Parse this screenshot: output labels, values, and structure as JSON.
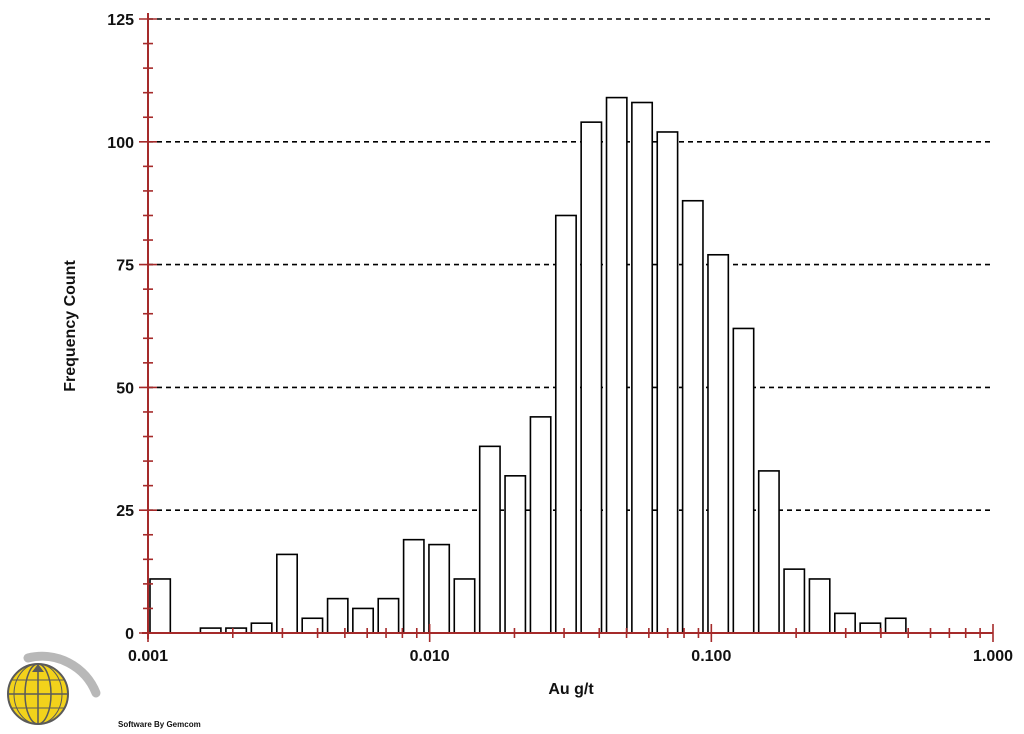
{
  "chart_data": {
    "type": "bar",
    "xscale": "log",
    "xlabel": "Au g/t",
    "ylabel": "Frequency Count",
    "xlim": [
      0.001,
      1.0
    ],
    "ylim": [
      0,
      125
    ],
    "x_ticks": [
      "0.001",
      "0.010",
      "0.100",
      "1.000"
    ],
    "y_ticks": [
      "0",
      "25",
      "50",
      "75",
      "100",
      "125"
    ],
    "grid": "horizontal dashed",
    "bin_edges": [
      0.001,
      0.00123,
      0.00151,
      0.00186,
      0.00229,
      0.00282,
      0.00347,
      0.00427,
      0.00525,
      0.00646,
      0.00795,
      0.00978,
      0.01203,
      0.01481,
      0.01822,
      0.02242,
      0.02758,
      0.03394,
      0.04176,
      0.05138,
      0.06322,
      0.07779,
      0.09571,
      0.11776,
      0.1449,
      0.17829,
      0.21937,
      0.26992,
      0.33212,
      0.40865
    ],
    "values": [
      11,
      0,
      1,
      1,
      2,
      16,
      3,
      7,
      5,
      7,
      19,
      18,
      11,
      38,
      32,
      44,
      85,
      104,
      109,
      108,
      102,
      88,
      77,
      62,
      33,
      13,
      11,
      4,
      2,
      3
    ],
    "colors": {
      "axis": "#a52a2a",
      "bar_fill": "#ffffff",
      "bar_stroke": "#000000",
      "grid": "#000000"
    }
  },
  "footer": {
    "credit_text": "Software By Gemcom"
  },
  "logo": {
    "icon": "gemcom-globe-logo-icon",
    "colors": {
      "globe": "#f2d21b",
      "grid": "#5a5a5a",
      "swoosh": "#b8b8b8"
    }
  }
}
